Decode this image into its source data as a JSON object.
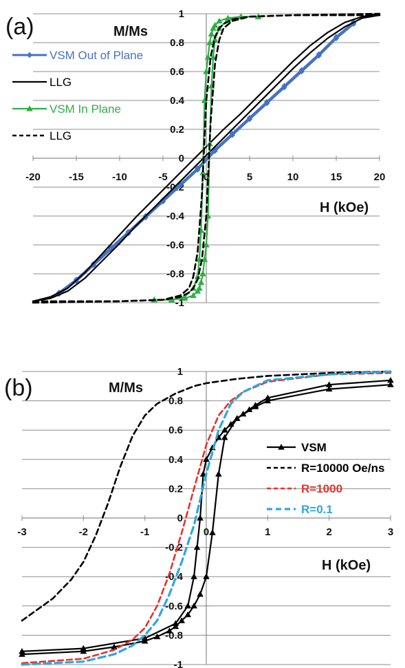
{
  "chart_data": [
    {
      "type": "line",
      "panel_label": "(a)",
      "ylabel": "M/Ms",
      "xlabel": "H (kOe)",
      "xlim": [
        -20,
        20
      ],
      "ylim": [
        -1,
        1
      ],
      "xticks": [
        "-20",
        "-15",
        "-10",
        "-5",
        "0",
        "5",
        "10",
        "15",
        "20"
      ],
      "yticks": [
        "1",
        "0.8",
        "0.6",
        "0.4",
        "0.2",
        "0",
        "-0.2",
        "-0.4",
        "-0.6",
        "-0.8",
        "-1"
      ],
      "grid": "horizontal",
      "legend_position": "left",
      "series": [
        {
          "name": "VSM Out of Plane",
          "color": "#4472C4",
          "style": "solid-diamond",
          "marker": "diamond",
          "x": [
            -17,
            -15,
            -13,
            -11,
            -9,
            -7,
            -5,
            -3,
            -1,
            1,
            3,
            5,
            7,
            9,
            11,
            13,
            15,
            17
          ],
          "y_upper": [
            -0.93,
            -0.84,
            -0.73,
            -0.62,
            -0.51,
            -0.4,
            -0.29,
            -0.18,
            -0.07,
            0.06,
            0.17,
            0.28,
            0.39,
            0.5,
            0.61,
            0.72,
            0.84,
            0.94
          ],
          "y_lower": [
            -0.94,
            -0.85,
            -0.74,
            -0.63,
            -0.52,
            -0.41,
            -0.3,
            -0.19,
            -0.08,
            0.05,
            0.16,
            0.27,
            0.38,
            0.49,
            0.6,
            0.71,
            0.83,
            0.93
          ]
        },
        {
          "name": "LLG",
          "color": "#000000",
          "style": "solid",
          "x": [
            -20,
            -18,
            -16,
            -14,
            -12,
            -10,
            -8,
            -6,
            -4,
            -2,
            0,
            2,
            4,
            6,
            8,
            10,
            12,
            14,
            16,
            18,
            20
          ],
          "y_upper": [
            -0.99,
            -0.96,
            -0.9,
            -0.79,
            -0.66,
            -0.53,
            -0.4,
            -0.28,
            -0.16,
            -0.04,
            0.08,
            0.2,
            0.31,
            0.43,
            0.55,
            0.67,
            0.78,
            0.87,
            0.94,
            0.98,
            1.0
          ],
          "y_lower": [
            -0.99,
            -0.97,
            -0.92,
            -0.83,
            -0.71,
            -0.59,
            -0.46,
            -0.34,
            -0.22,
            -0.1,
            0.02,
            0.14,
            0.26,
            0.38,
            0.5,
            0.62,
            0.73,
            0.83,
            0.91,
            0.97,
            0.99
          ]
        },
        {
          "name": "VSM In Plane",
          "color": "#2EAE44",
          "style": "solid-triangle",
          "marker": "triangle",
          "x": [
            -6,
            -4,
            -2.5,
            -1.5,
            -1,
            -0.8,
            -0.6,
            -0.4,
            -0.2,
            0,
            0.2,
            0.4,
            0.6,
            0.8,
            1,
            1.5,
            2.5,
            4,
            6
          ],
          "y_upper": [
            -0.98,
            -0.98,
            -0.96,
            -0.9,
            -0.82,
            -0.7,
            -0.5,
            -0.1,
            0.4,
            0.6,
            0.7,
            0.8,
            0.86,
            0.9,
            0.92,
            0.95,
            0.97,
            0.98,
            0.98
          ],
          "y_lower": [
            -0.98,
            -0.98,
            -0.97,
            -0.95,
            -0.92,
            -0.9,
            -0.86,
            -0.8,
            -0.7,
            -0.6,
            -0.4,
            0.1,
            0.5,
            0.7,
            0.82,
            0.9,
            0.96,
            0.98,
            0.98
          ]
        },
        {
          "name": "LLG",
          "color": "#000000",
          "style": "dashed",
          "x": [
            -20,
            -10,
            -5,
            -3,
            -2,
            -1.5,
            -1,
            -0.5,
            0,
            0.5,
            1,
            1.5,
            2,
            3,
            5,
            10,
            20
          ],
          "y_upper": [
            -0.99,
            -0.99,
            -0.98,
            -0.95,
            -0.9,
            -0.82,
            -0.65,
            -0.25,
            0.4,
            0.7,
            0.84,
            0.9,
            0.93,
            0.96,
            0.98,
            0.99,
            1.0
          ],
          "y_lower": [
            -1.0,
            -0.99,
            -0.98,
            -0.96,
            -0.93,
            -0.9,
            -0.84,
            -0.7,
            -0.4,
            0.25,
            0.65,
            0.82,
            0.9,
            0.95,
            0.98,
            0.99,
            0.99
          ]
        }
      ]
    },
    {
      "type": "line",
      "panel_label": "(b)",
      "ylabel": "M/Ms",
      "xlabel": "H (kOe)",
      "xlim": [
        -3,
        3
      ],
      "ylim": [
        -1,
        1
      ],
      "xticks": [
        "-3",
        "-2",
        "-1",
        "0",
        "1",
        "2",
        "3"
      ],
      "yticks": [
        "1",
        "0.8",
        "0.6",
        "0.4",
        "0.2",
        "0",
        "-0.2",
        "-0.4",
        "-0.6",
        "-0.8",
        "-1"
      ],
      "grid": "horizontal",
      "legend_position": "right",
      "series": [
        {
          "name": "VSM",
          "color": "#000000",
          "style": "solid-triangle",
          "marker": "triangle",
          "x_lower": [
            -3,
            -2,
            -1.5,
            -1,
            -0.8,
            -0.6,
            -0.5,
            -0.4,
            -0.3,
            -0.2,
            -0.1,
            0,
            0.1,
            0.2,
            0.3,
            0.5,
            0.8,
            1,
            2,
            3
          ],
          "y_lower": [
            -0.93,
            -0.91,
            -0.88,
            -0.84,
            -0.81,
            -0.77,
            -0.74,
            -0.7,
            -0.66,
            -0.6,
            -0.52,
            -0.4,
            -0.1,
            0.3,
            0.55,
            0.68,
            0.76,
            0.8,
            0.88,
            0.91
          ],
          "x_upper": [
            -3,
            -2,
            -1,
            -0.5,
            -0.3,
            -0.2,
            -0.15,
            -0.1,
            -0.05,
            0,
            0.1,
            0.2,
            0.3,
            0.4,
            0.5,
            0.6,
            0.7,
            0.8,
            1,
            2,
            3
          ],
          "y_upper": [
            -0.91,
            -0.89,
            -0.82,
            -0.72,
            -0.6,
            -0.4,
            -0.2,
            0.0,
            0.3,
            0.4,
            0.48,
            0.55,
            0.6,
            0.64,
            0.68,
            0.71,
            0.74,
            0.77,
            0.82,
            0.91,
            0.94
          ]
        },
        {
          "name": "R=10000 Oe/ns",
          "color": "#000000",
          "style": "dashed",
          "x": [
            -3,
            -2.5,
            -2.2,
            -2,
            -1.8,
            -1.6,
            -1.4,
            -1.2,
            -1,
            -0.8,
            -0.5,
            -0.2,
            0,
            0.5,
            1,
            2,
            3
          ],
          "y": [
            -0.7,
            -0.55,
            -0.42,
            -0.3,
            -0.12,
            0.1,
            0.35,
            0.56,
            0.7,
            0.78,
            0.85,
            0.9,
            0.92,
            0.95,
            0.97,
            0.99,
            1.0
          ]
        },
        {
          "name": "R=1000",
          "color": "#E8302A",
          "style": "dashed",
          "x": [
            -3,
            -2,
            -1.5,
            -1.2,
            -1,
            -0.8,
            -0.6,
            -0.4,
            -0.2,
            0,
            0.2,
            0.4,
            0.6,
            1,
            2,
            3
          ],
          "y": [
            -0.99,
            -0.96,
            -0.9,
            -0.83,
            -0.75,
            -0.6,
            -0.38,
            -0.1,
            0.2,
            0.5,
            0.7,
            0.8,
            0.86,
            0.93,
            0.98,
            0.99
          ]
        },
        {
          "name": "R=0.1",
          "color": "#2AA8E0",
          "style": "dashed-thick",
          "x": [
            -3,
            -2,
            -1.5,
            -1.2,
            -1,
            -0.8,
            -0.6,
            -0.4,
            -0.2,
            0,
            0.2,
            0.4,
            0.6,
            1,
            2,
            3
          ],
          "y": [
            -1.0,
            -0.98,
            -0.93,
            -0.87,
            -0.8,
            -0.7,
            -0.52,
            -0.3,
            -0.05,
            0.3,
            0.6,
            0.78,
            0.86,
            0.94,
            0.98,
            1.0
          ]
        }
      ]
    }
  ]
}
